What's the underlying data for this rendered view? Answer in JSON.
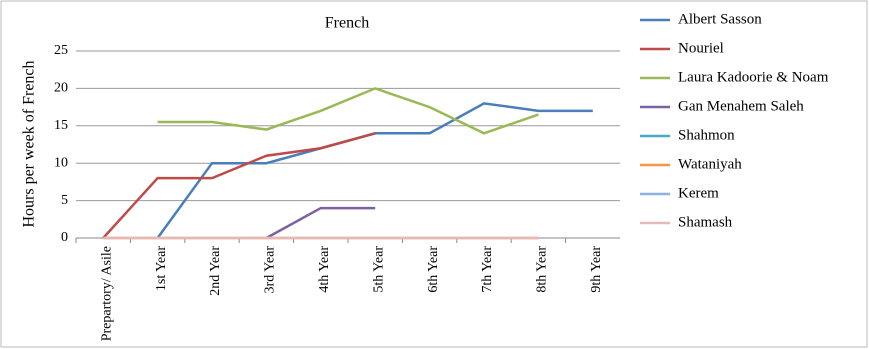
{
  "chart_data": {
    "type": "line",
    "title": "French",
    "y_label": "Hours per week of French",
    "categories": [
      "Prepartory/ Asile",
      "1st Year",
      "2nd Year",
      "3rd Year",
      "4th Year",
      "5th Year",
      "6th Year",
      "7th Year",
      "8th Year",
      "9th Year"
    ],
    "series": [
      {
        "name": "Albert Sasson",
        "color": "#4a7ebb",
        "values": [
          null,
          0,
          10,
          10,
          12,
          14,
          14,
          18,
          17,
          17
        ]
      },
      {
        "name": "Nouriel",
        "color": "#be4b48",
        "values": [
          0,
          8,
          8,
          11,
          12,
          14,
          null,
          null,
          null,
          null
        ]
      },
      {
        "name": "Laura Kadoorie & Noam",
        "color": "#98b954",
        "values": [
          null,
          15.5,
          15.5,
          14.5,
          17,
          20,
          17.5,
          14,
          16.5,
          null
        ]
      },
      {
        "name": "Gan Menahem Saleh",
        "color": "#7d60a0",
        "values": [
          null,
          null,
          null,
          0,
          4,
          4,
          null,
          null,
          null,
          null
        ]
      },
      {
        "name": "Shahmon",
        "color": "#46aac5",
        "values": [
          null,
          null,
          null,
          null,
          null,
          null,
          null,
          null,
          null,
          null
        ]
      },
      {
        "name": "Wataniyah",
        "color": "#f79646",
        "values": [
          0,
          0,
          0,
          0,
          0,
          0,
          0,
          0,
          0,
          null
        ]
      },
      {
        "name": "Kerem",
        "color": "#8db3e2",
        "values": [
          null,
          null,
          null,
          null,
          null,
          null,
          null,
          null,
          null,
          null
        ]
      },
      {
        "name": "Shamash",
        "color": "#e6b9b8",
        "values": [
          0,
          0,
          0,
          0,
          0,
          0,
          0,
          0,
          0,
          null
        ]
      }
    ],
    "ylim": [
      0,
      25
    ],
    "yticks": [
      0,
      5,
      10,
      15,
      20,
      25
    ],
    "grid": true,
    "legend": "right"
  }
}
